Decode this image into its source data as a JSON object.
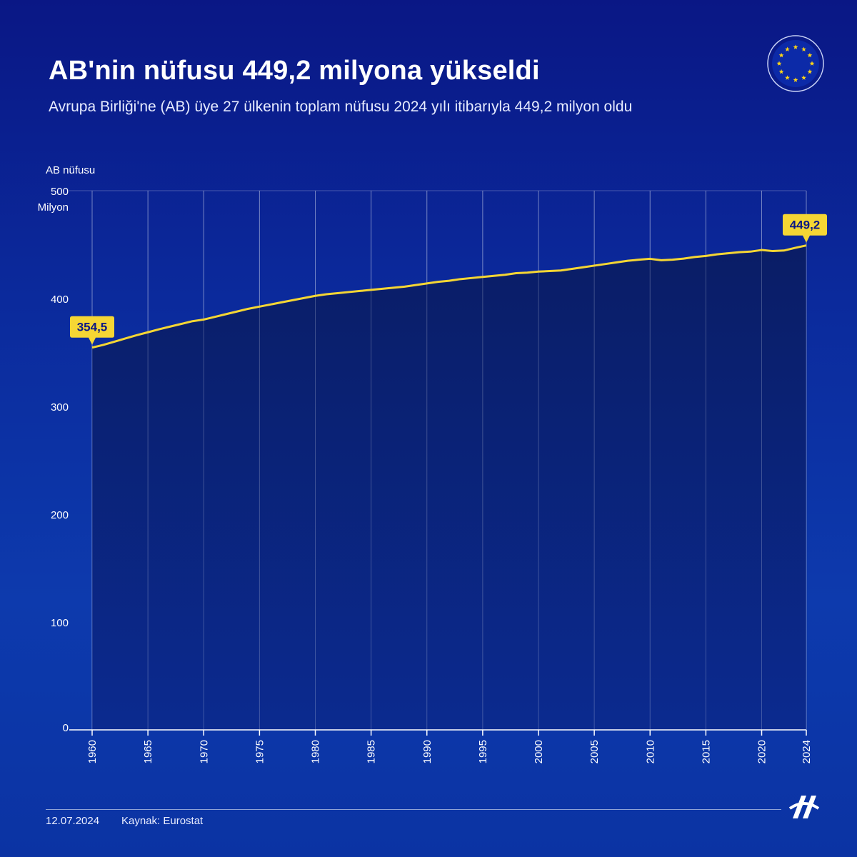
{
  "header": {
    "title": "AB'nin nüfusu 449,2 milyona yükseldi",
    "subtitle": "Avrupa Birliği'ne (AB) üye 27 ülkenin toplam nüfusu 2024 yılı itibarıyla 449,2 milyon oldu"
  },
  "footer": {
    "date": "12.07.2024",
    "source": "Kaynak: Eurostat"
  },
  "colors": {
    "background": "#0b2a9c",
    "line": "#f5d634",
    "callout": "#f5d634",
    "area": "#0b226f"
  },
  "icons": [
    "eu-flag-icon",
    "aa-logo-icon"
  ],
  "chart_data": {
    "type": "area",
    "ylabel": "AB nüfusu",
    "yunit": "Milyon",
    "ylim": [
      0,
      500
    ],
    "yticks": [
      0,
      100,
      200,
      300,
      400,
      500
    ],
    "xlim": [
      1960,
      2024
    ],
    "xticks": [
      "1960",
      "1965",
      "1970",
      "1975",
      "1980",
      "1985",
      "1990",
      "1995",
      "2000",
      "2005",
      "2010",
      "2015",
      "2020",
      "2024"
    ],
    "grid": "vertical",
    "start_label": "354,5",
    "end_label": "449,2",
    "x": [
      1960,
      1961,
      1962,
      1963,
      1964,
      1965,
      1966,
      1967,
      1968,
      1969,
      1970,
      1971,
      1972,
      1973,
      1974,
      1975,
      1976,
      1977,
      1978,
      1979,
      1980,
      1981,
      1982,
      1983,
      1984,
      1985,
      1986,
      1987,
      1988,
      1989,
      1990,
      1991,
      1992,
      1993,
      1994,
      1995,
      1996,
      1997,
      1998,
      1999,
      2000,
      2001,
      2002,
      2003,
      2004,
      2005,
      2006,
      2007,
      2008,
      2009,
      2010,
      2011,
      2012,
      2013,
      2014,
      2015,
      2016,
      2017,
      2018,
      2019,
      2020,
      2021,
      2022,
      2023,
      2024
    ],
    "series": [
      {
        "values": [
          354.5,
          357.0,
          360.0,
          363.0,
          366.0,
          368.7,
          371.5,
          374.0,
          376.5,
          379.0,
          380.5,
          383.0,
          385.5,
          388.0,
          390.5,
          392.5,
          394.5,
          396.5,
          398.5,
          400.5,
          402.5,
          404.0,
          405.0,
          406.0,
          407.0,
          408.0,
          409.0,
          410.0,
          411.0,
          412.5,
          414.0,
          415.5,
          416.5,
          418.0,
          419.0,
          420.0,
          421.0,
          422.0,
          423.5,
          424.0,
          425.0,
          425.5,
          426.0,
          427.5,
          429.0,
          430.5,
          432.0,
          433.5,
          435.0,
          436.0,
          436.8,
          435.5,
          436.0,
          437.0,
          438.5,
          439.5,
          441.0,
          442.0,
          443.0,
          443.5,
          445.0,
          444.0,
          444.5,
          447.0,
          449.2
        ]
      }
    ]
  }
}
